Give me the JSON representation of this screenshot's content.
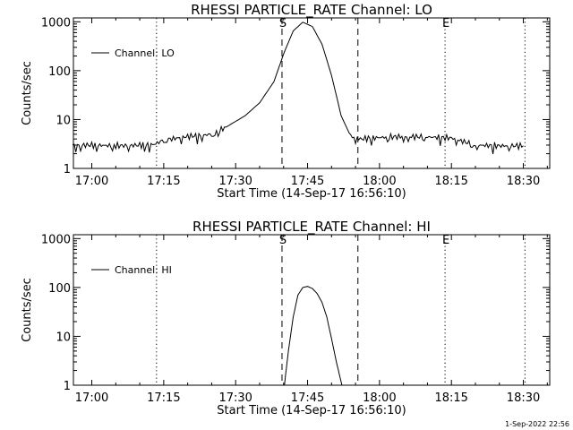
{
  "footer": {
    "timestamp": "1-Sep-2022 22:56"
  },
  "chart_data": [
    {
      "type": "line",
      "title": "RHESSI PARTICLE_RATE Channel: LO",
      "xlabel": "Start Time (14-Sep-17 16:56:10)",
      "ylabel": "Counts/sec",
      "yscale": "log",
      "ylim": [
        1,
        1200
      ],
      "xlim": [
        "16:56:10",
        "18:35:30"
      ],
      "xticks": [
        "17:00",
        "17:15",
        "17:30",
        "17:45",
        "18:00",
        "18:15",
        "18:30"
      ],
      "yticks": [
        "1",
        "10",
        "100",
        "1000"
      ],
      "legend": "top-left",
      "series": [
        {
          "name": "Channel: LO",
          "x": [
            "16:56",
            "17:00",
            "17:05",
            "17:10",
            "17:13",
            "17:15",
            "17:20",
            "17:25",
            "17:28",
            "17:32",
            "17:35",
            "17:38",
            "17:40",
            "17:42",
            "17:44",
            "17:46",
            "17:48",
            "17:50",
            "17:52",
            "17:54",
            "17:56",
            "18:00",
            "18:05",
            "18:10",
            "18:15",
            "18:20",
            "18:25",
            "18:30"
          ],
          "values": [
            3,
            3,
            2.9,
            3,
            3.1,
            3.8,
            4.5,
            5,
            7,
            12,
            22,
            60,
            220,
            650,
            980,
            800,
            350,
            80,
            12,
            4.5,
            4,
            4.3,
            4.5,
            4.4,
            4.2,
            3,
            2.9,
            2.9
          ]
        }
      ],
      "vlines": [
        {
          "time": "17:13:30",
          "style": "dotted"
        },
        {
          "time": "17:39:40",
          "style": "dashed",
          "label": "S"
        },
        {
          "time": "17:55:30",
          "style": "dashed"
        },
        {
          "time": "18:13:40",
          "style": "dotted",
          "label": "E"
        },
        {
          "time": "18:30:20",
          "style": "dotted"
        }
      ]
    },
    {
      "type": "line",
      "title": "RHESSI PARTICLE_RATE Channel: HI",
      "xlabel": "Start Time (14-Sep-17 16:56:10)",
      "ylabel": "Counts/sec",
      "yscale": "log",
      "ylim": [
        1,
        1200
      ],
      "xlim": [
        "16:56:10",
        "18:35:30"
      ],
      "xticks": [
        "17:00",
        "17:15",
        "17:30",
        "17:45",
        "18:00",
        "18:15",
        "18:30"
      ],
      "yticks": [
        "1",
        "10",
        "100",
        "1000"
      ],
      "legend": "top-left",
      "series": [
        {
          "name": "Channel: HI",
          "x": [
            "17:40:10",
            "17:41",
            "17:42",
            "17:43",
            "17:44",
            "17:45",
            "17:46",
            "17:47",
            "17:48",
            "17:49",
            "17:50",
            "17:51",
            "17:52:10"
          ],
          "values": [
            1,
            5,
            25,
            70,
            100,
            105,
            95,
            75,
            50,
            25,
            9,
            3,
            1
          ]
        }
      ],
      "vlines": [
        {
          "time": "17:13:30",
          "style": "dotted"
        },
        {
          "time": "17:39:40",
          "style": "dashed",
          "label": "S"
        },
        {
          "time": "17:55:30",
          "style": "dashed"
        },
        {
          "time": "18:13:40",
          "style": "dotted",
          "label": "E"
        },
        {
          "time": "18:30:20",
          "style": "dotted"
        }
      ]
    }
  ]
}
